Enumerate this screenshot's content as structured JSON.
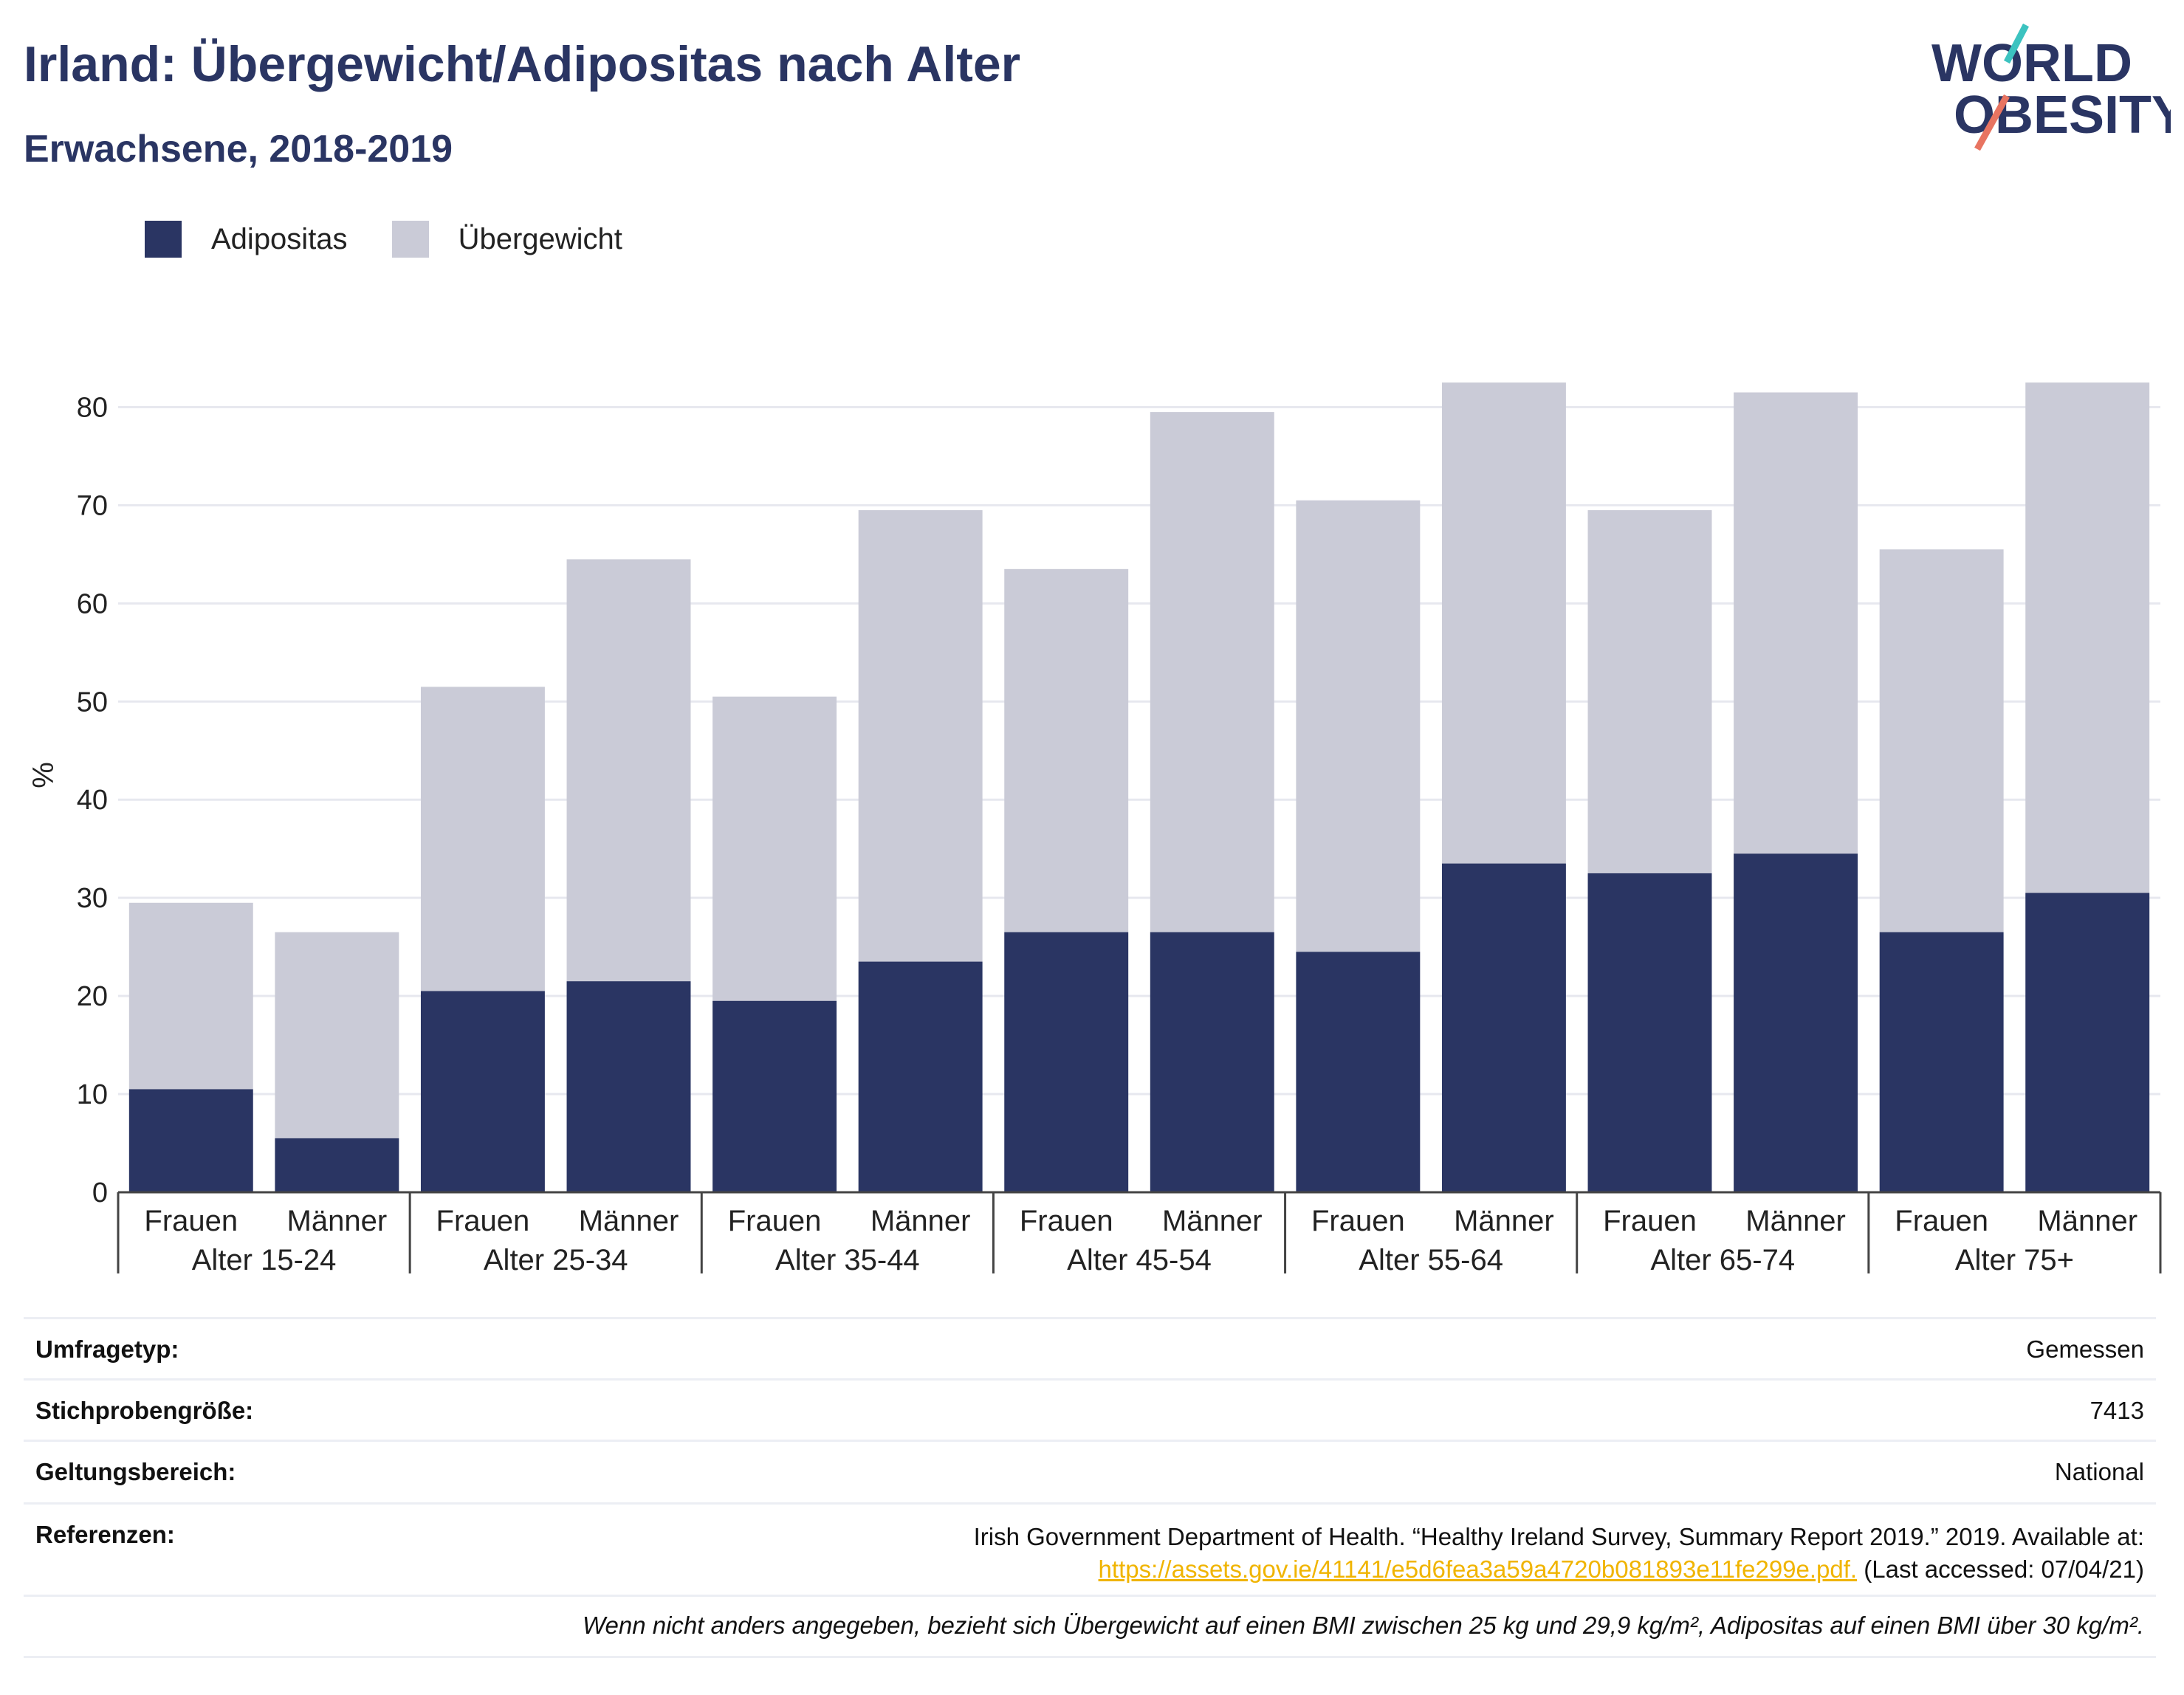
{
  "title": "Irland: Übergewicht/Adipositas nach Alter",
  "subtitle": "Erwachsene, 2018-2019",
  "logo": {
    "line1": "WORLD",
    "line2": "OBESITY"
  },
  "colors": {
    "adipositas": "#2a3563",
    "uebergewicht": "#cacbd7",
    "link": "#f0b400",
    "grid": "#e7e8ef"
  },
  "chart_data": {
    "type": "bar",
    "stacked": true,
    "ylabel": "%",
    "ylim": [
      0,
      85
    ],
    "yticks": [
      0,
      10,
      20,
      30,
      40,
      50,
      60,
      70,
      80
    ],
    "legend_position": "top-left",
    "groups": [
      "Alter 15-24",
      "Alter 25-34",
      "Alter 35-44",
      "Alter 45-54",
      "Alter 55-64",
      "Alter 65-74",
      "Alter 75+"
    ],
    "sub_categories": [
      "Frauen",
      "Männer"
    ],
    "series": [
      {
        "name": "Adipositas",
        "values": [
          10.5,
          5.5,
          20.5,
          21.5,
          19.5,
          23.5,
          26.5,
          26.5,
          24.5,
          33.5,
          32.5,
          34.5,
          26.5,
          30.5
        ]
      },
      {
        "name": "Übergewicht",
        "values": [
          19,
          21,
          31,
          43,
          31,
          46,
          37,
          53,
          46,
          49,
          37,
          47,
          39,
          52
        ]
      }
    ]
  },
  "meta": {
    "survey_type_label": "Umfragetyp:",
    "survey_type_value": "Gemessen",
    "sample_label": "Stichprobengröße:",
    "sample_value": "7413",
    "scope_label": "Geltungsbereich:",
    "scope_value": "National",
    "references_label": "Referenzen:",
    "reference_text": "Irish Government Department of Health. “Healthy Ireland Survey, Summary Report 2019.” 2019. Available at:",
    "reference_link": "https://assets.gov.ie/41141/e5d6fea3a59a4720b081893e11fe299e.pdf.",
    "reference_accessed": "(Last accessed: 07/04/21)",
    "note": "Wenn nicht anders angegeben, bezieht sich Übergewicht auf einen BMI zwischen 25 kg und 29,9 kg/m², Adipositas auf einen BMI über 30 kg/m²."
  }
}
